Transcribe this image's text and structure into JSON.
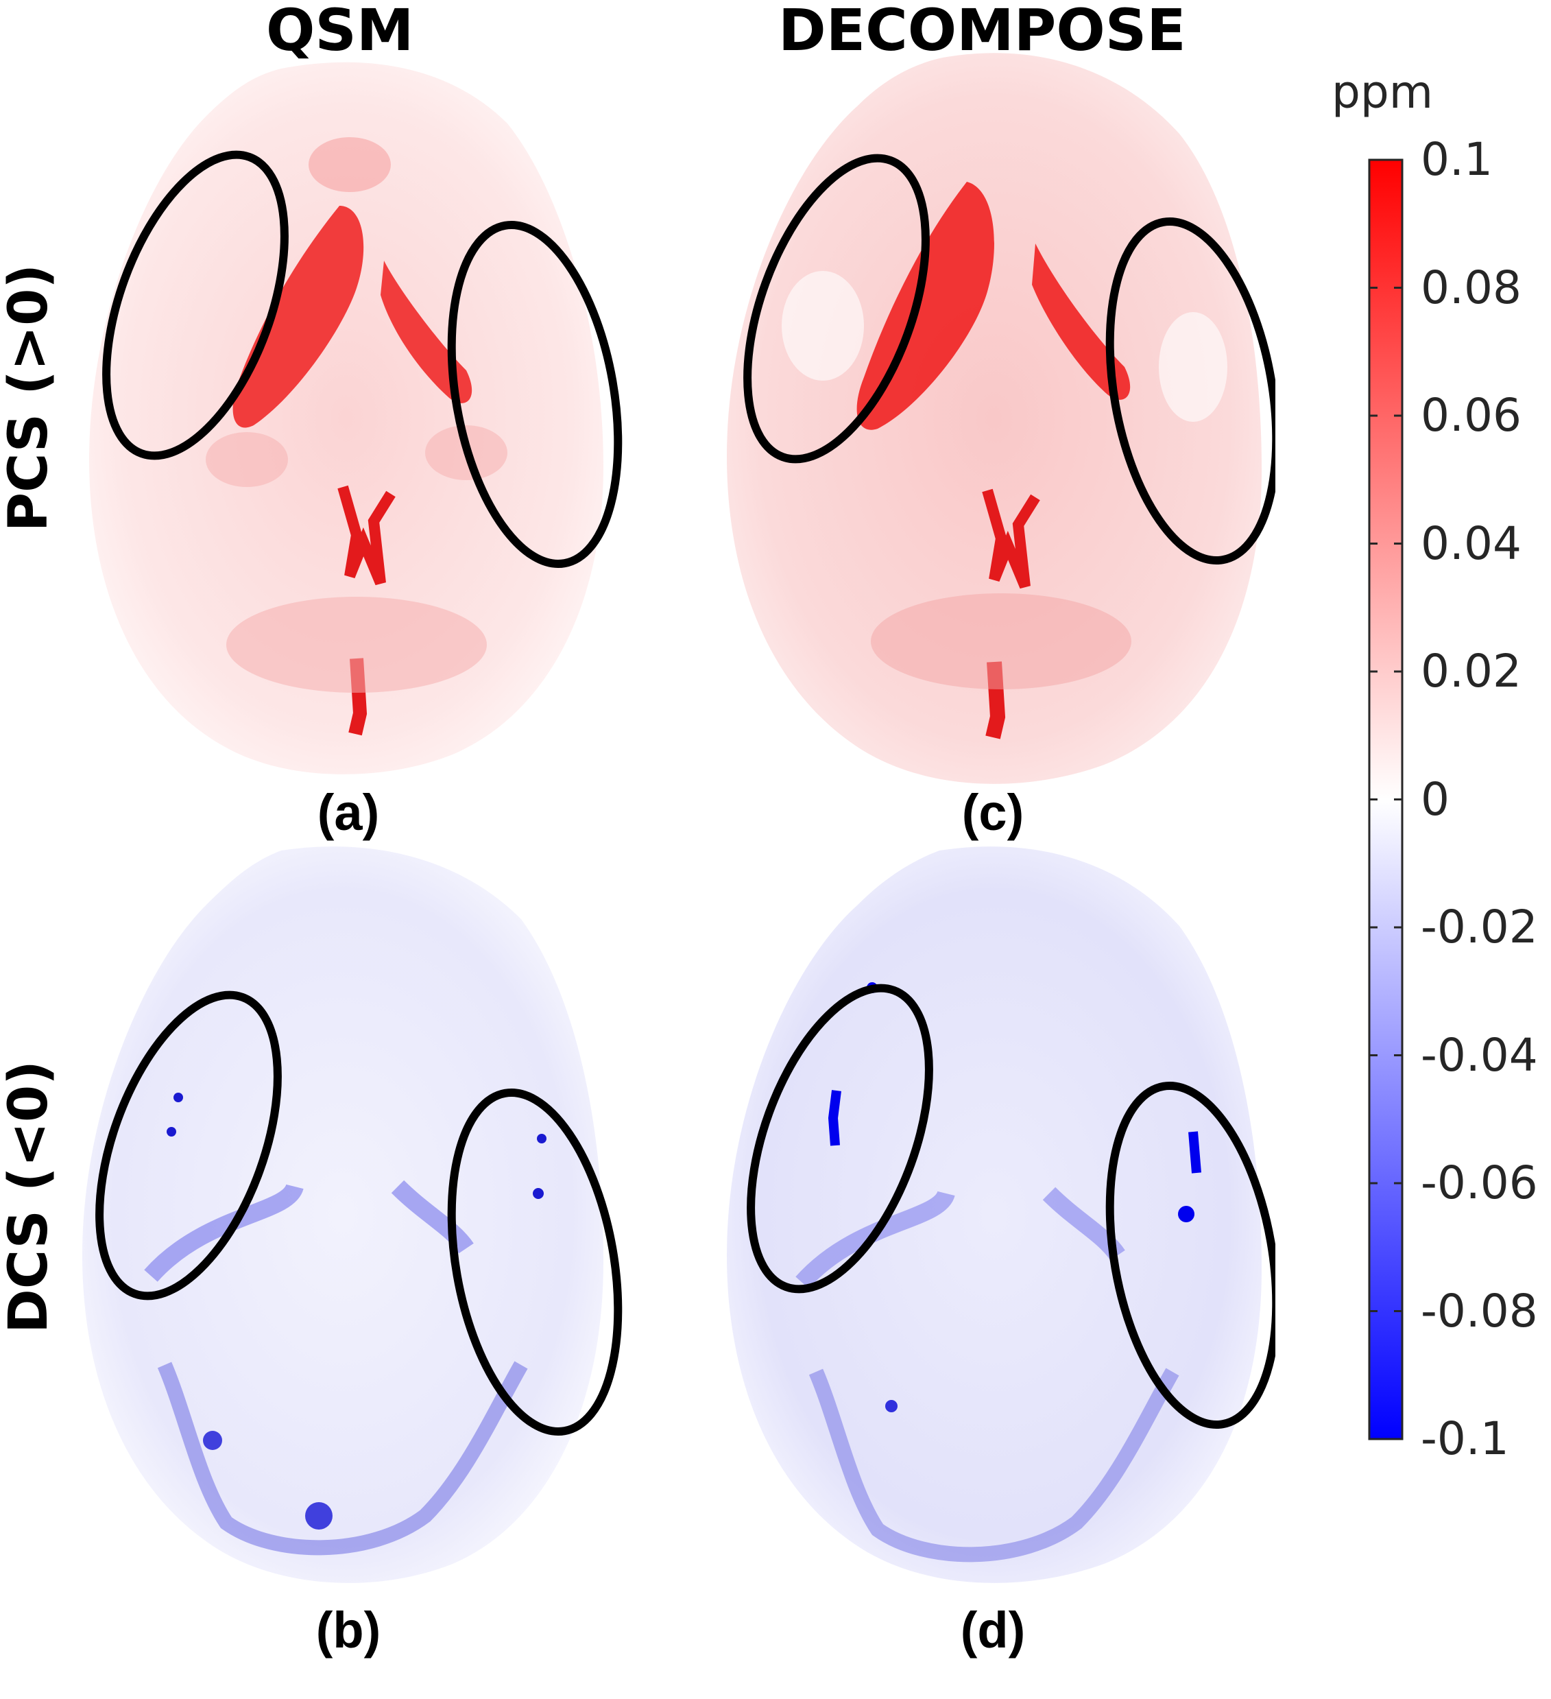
{
  "columns": {
    "left_title": "QSM",
    "right_title": "DECOMPOSE"
  },
  "rows": {
    "top_title": "PCS (>0)",
    "bottom_title": "DCS (<0)"
  },
  "panels": [
    {
      "label": "(a)",
      "color": "#e31a1c"
    },
    {
      "label": "(b)",
      "color": "#2b2bd6"
    },
    {
      "label": "(c)",
      "color": "#e31a1c"
    },
    {
      "label": "(d)",
      "color": "#2b2bd6"
    }
  ],
  "colorbar": {
    "unit": "ppm",
    "ticks": [
      "0.1",
      "0.08",
      "0.06",
      "0.04",
      "0.02",
      "0",
      "-0.02",
      "-0.04",
      "-0.06",
      "-0.08",
      "-0.1"
    ],
    "max_color": "#ff0000",
    "mid_color": "#ffffff",
    "min_color": "#0000ff"
  }
}
